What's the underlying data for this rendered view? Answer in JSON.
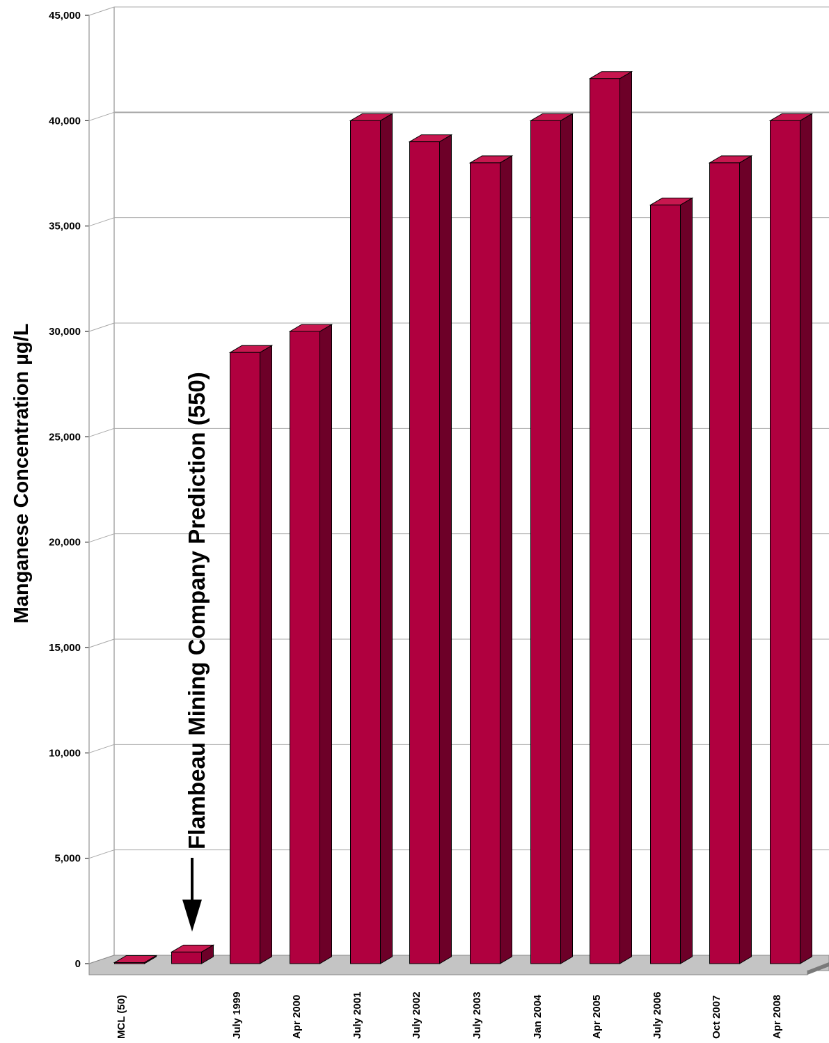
{
  "chart_data": {
    "type": "bar",
    "ylabel": "Manganese Concentration µg/L",
    "xlabel": "",
    "ylim": [
      0,
      45000
    ],
    "yticks": [
      "45,000",
      "40,000",
      "35,000",
      "30,000",
      "25,000",
      "20,000",
      "15,000",
      "10,000",
      "5,000",
      "0"
    ],
    "ytick_values": [
      45000,
      40000,
      35000,
      30000,
      25000,
      20000,
      15000,
      10000,
      5000,
      0
    ],
    "categories": [
      "MCL (50)",
      "",
      "July 1999",
      "Apr 2000",
      "July 2001",
      "July 2002",
      "July 2003",
      "Jan 2004",
      "Apr 2005",
      "July 2006",
      "Oct 2007",
      "Apr 2008"
    ],
    "values": [
      50,
      550,
      29000,
      30000,
      40000,
      39000,
      38000,
      40000,
      42000,
      36000,
      38000,
      40000
    ],
    "grid": true,
    "annotation": "Flambeau Mining Company Prediction (550)",
    "colors": {
      "bar_front": "#b0003f",
      "bar_side": "#6d0028",
      "bar_top": "#c8174f",
      "grid": "#a8a8a8",
      "floor": "#c4c4c4"
    }
  }
}
